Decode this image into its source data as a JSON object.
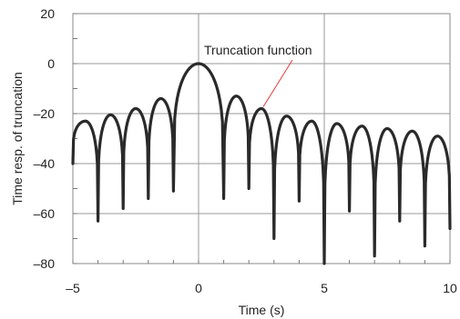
{
  "chart_data": {
    "type": "line",
    "title": "",
    "xlabel": "Time (s)",
    "ylabel": "Time resp. of truncation",
    "xlim": [
      -5,
      10
    ],
    "ylim": [
      -80,
      20
    ],
    "x_ticks": [
      -5,
      0,
      5,
      10
    ],
    "x_tick_labels": [
      "–5",
      "0",
      "5",
      "10"
    ],
    "y_ticks": [
      20,
      0,
      -20,
      -40,
      -60,
      -80
    ],
    "y_tick_labels": [
      "20",
      "0",
      "–20",
      "–40",
      "–60",
      "–80"
    ],
    "grid": true,
    "annotation": {
      "text": "Truncation function",
      "points_to_x": 2.5,
      "points_to_y": -18
    },
    "line_color": "#2a2a2a",
    "series": [
      {
        "lobe_peaks": [
          {
            "x": -4.5,
            "y": -23
          },
          {
            "x": -3.5,
            "y": -20.5
          },
          {
            "x": -2.5,
            "y": -18
          },
          {
            "x": -1.5,
            "y": -14
          },
          {
            "x": 0.0,
            "y": 0
          },
          {
            "x": 1.5,
            "y": -13
          },
          {
            "x": 2.5,
            "y": -18
          },
          {
            "x": 3.5,
            "y": -21
          },
          {
            "x": 4.5,
            "y": -23
          },
          {
            "x": 5.5,
            "y": -24
          },
          {
            "x": 6.5,
            "y": -25
          },
          {
            "x": 7.5,
            "y": -26
          },
          {
            "x": 8.5,
            "y": -27
          },
          {
            "x": 9.5,
            "y": -29
          }
        ],
        "nulls": [
          {
            "x": -5,
            "y": -40
          },
          {
            "x": -4,
            "y": -63
          },
          {
            "x": -3,
            "y": -58
          },
          {
            "x": -2,
            "y": -54
          },
          {
            "x": -1,
            "y": -51
          },
          {
            "x": 1,
            "y": -54
          },
          {
            "x": 2,
            "y": -50
          },
          {
            "x": 3,
            "y": -70
          },
          {
            "x": 4,
            "y": -55
          },
          {
            "x": 5,
            "y": -80
          },
          {
            "x": 6,
            "y": -59
          },
          {
            "x": 7,
            "y": -77
          },
          {
            "x": 8,
            "y": -63
          },
          {
            "x": 9,
            "y": -73
          },
          {
            "x": 10,
            "y": -66
          }
        ]
      }
    ]
  }
}
